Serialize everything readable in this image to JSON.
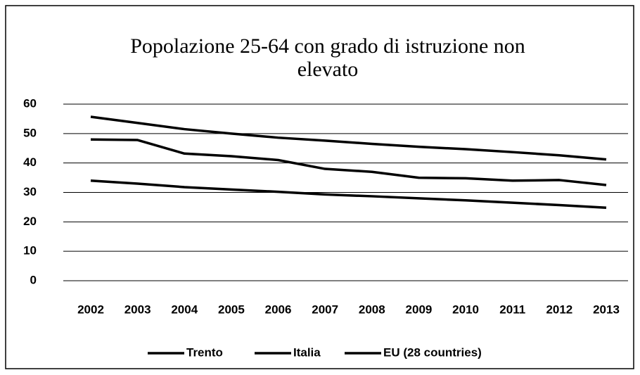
{
  "chart_data": {
    "type": "line",
    "title": [
      "Popolazione 25-64 con grado di istruzione non",
      "elevato"
    ],
    "categories": [
      "2002",
      "2003",
      "2004",
      "2005",
      "2006",
      "2007",
      "2008",
      "2009",
      "2010",
      "2011",
      "2012",
      "2013"
    ],
    "series": [
      {
        "name": "Trento",
        "color": "#000000",
        "values": [
          48,
          47.8,
          43.2,
          42.3,
          41,
          38,
          37,
          35,
          34.8,
          34,
          34.2,
          32.5
        ]
      },
      {
        "name": "Italia",
        "color": "#000000",
        "values": [
          55.7,
          53.6,
          51.5,
          50,
          48.6,
          47.6,
          46.5,
          45.5,
          44.7,
          43.7,
          42.6,
          41.2
        ]
      },
      {
        "name": "EU (28 countries)",
        "color": "#000000",
        "values": [
          34,
          33,
          31.8,
          31,
          30.2,
          29.3,
          28.7,
          28,
          27.3,
          26.5,
          25.7,
          24.8
        ]
      }
    ],
    "ylim": [
      0,
      60
    ],
    "yticks": [
      0,
      10,
      20,
      30,
      40,
      50,
      60
    ],
    "grid": true,
    "legend": "bottom"
  }
}
